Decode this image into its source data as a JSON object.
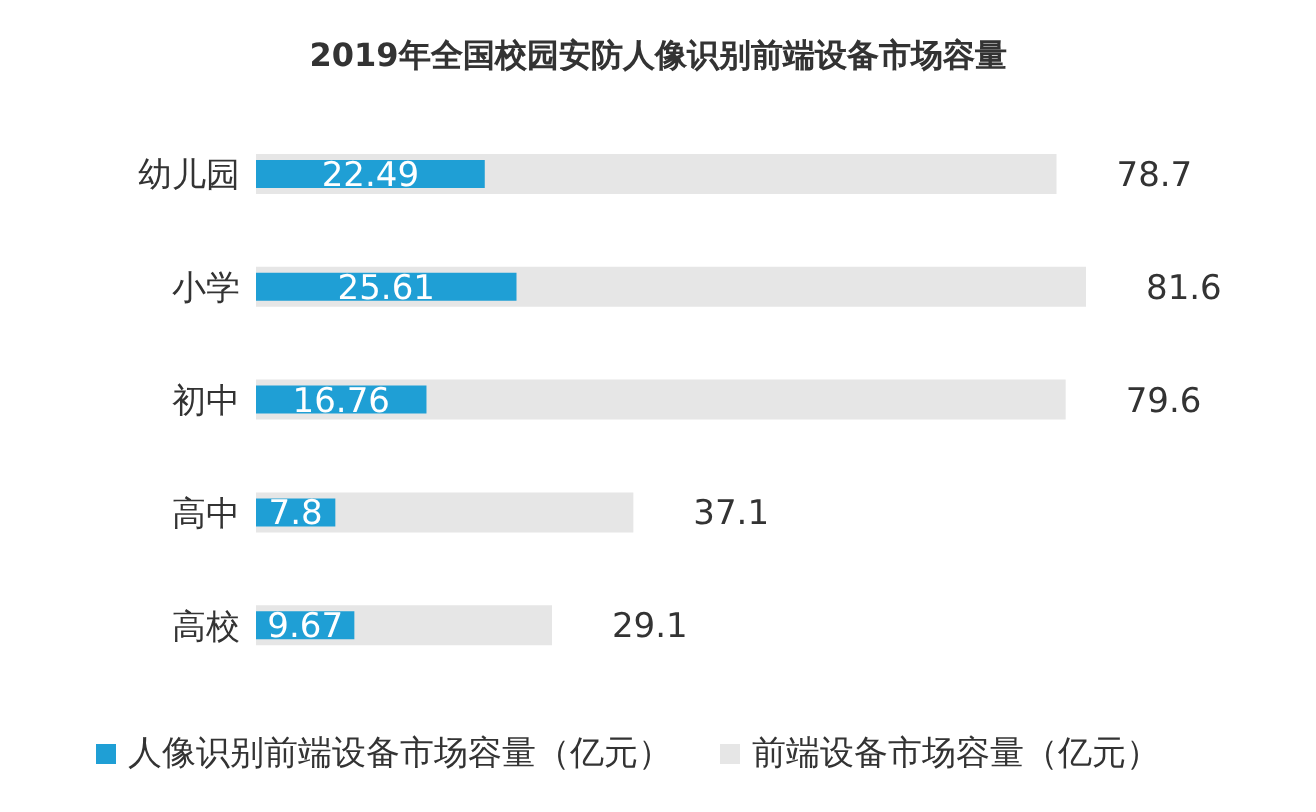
{
  "chart_data": {
    "type": "bar",
    "orientation": "horizontal",
    "title": "2019年全国校园安防人像识别前端设备市场容量",
    "categories": [
      "幼儿园",
      "小学",
      "初中",
      "高中",
      "高校"
    ],
    "series": [
      {
        "name": "人像识别前端设备市场容量（亿元）",
        "color": "#1f9fd5",
        "values": [
          22.49,
          25.61,
          16.76,
          7.8,
          9.67
        ]
      },
      {
        "name": "前端设备市场容量（亿元）",
        "color": "#e6e6e6",
        "values": [
          78.7,
          81.6,
          79.6,
          37.1,
          29.1
        ]
      }
    ],
    "data_labels": true,
    "legend": "bottom"
  }
}
